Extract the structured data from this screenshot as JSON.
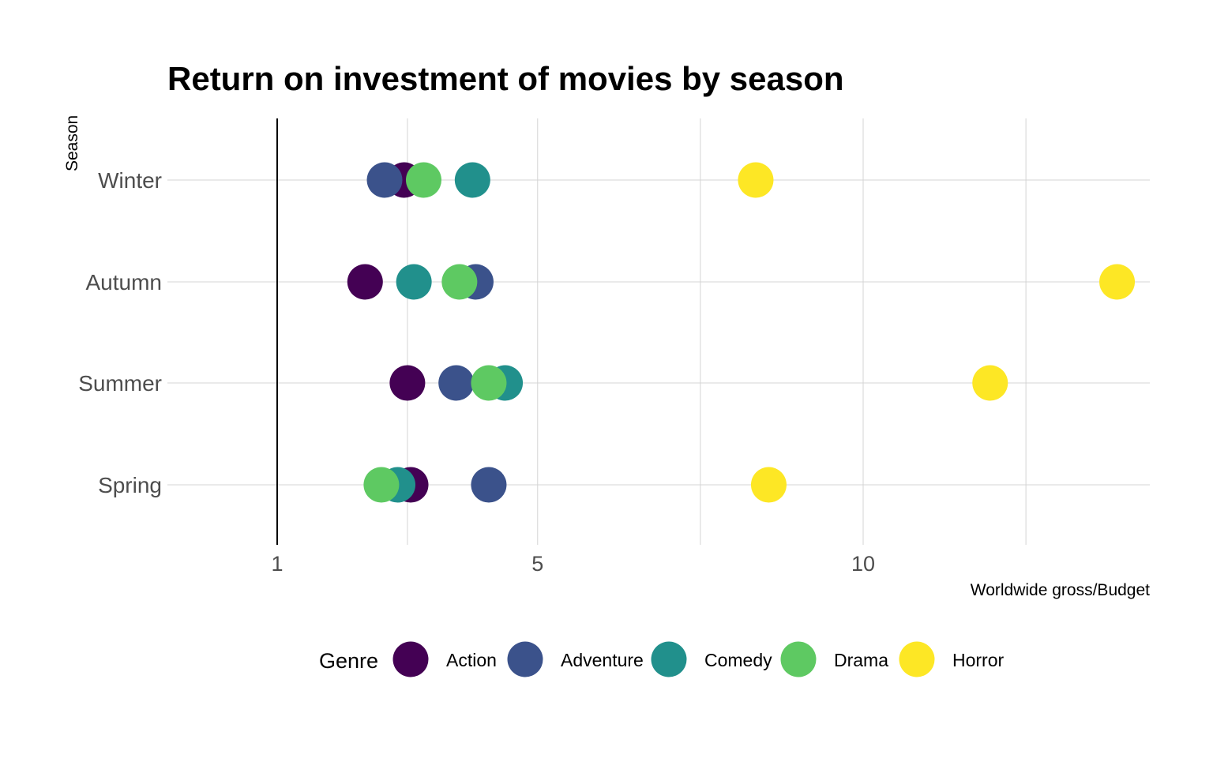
{
  "chart_data": {
    "type": "scatter",
    "title": "Return on investment of movies by season",
    "xlabel": "Worldwide gross/Budget",
    "ylabel": "Season",
    "x_ticks": [
      1,
      5,
      10
    ],
    "xlim": [
      1,
      14
    ],
    "grid": true,
    "legend_title": "Genre",
    "legend_position": "bottom",
    "categories": [
      "Spring",
      "Summer",
      "Autumn",
      "Winter"
    ],
    "series": [
      {
        "name": "Action",
        "color": "#440154",
        "values": [
          {
            "season": "Spring",
            "x": 3.05
          },
          {
            "season": "Summer",
            "x": 3.0
          },
          {
            "season": "Autumn",
            "x": 2.35
          },
          {
            "season": "Winter",
            "x": 2.95
          }
        ]
      },
      {
        "name": "Adventure",
        "color": "#3b528b",
        "values": [
          {
            "season": "Spring",
            "x": 4.25
          },
          {
            "season": "Summer",
            "x": 3.75
          },
          {
            "season": "Autumn",
            "x": 4.05
          },
          {
            "season": "Winter",
            "x": 2.65
          }
        ]
      },
      {
        "name": "Comedy",
        "color": "#21908c",
        "values": [
          {
            "season": "Spring",
            "x": 2.85
          },
          {
            "season": "Summer",
            "x": 4.5
          },
          {
            "season": "Autumn",
            "x": 3.1
          },
          {
            "season": "Winter",
            "x": 4.0
          }
        ]
      },
      {
        "name": "Drama",
        "color": "#5ec962",
        "values": [
          {
            "season": "Spring",
            "x": 2.6
          },
          {
            "season": "Summer",
            "x": 4.25
          },
          {
            "season": "Autumn",
            "x": 3.8
          },
          {
            "season": "Winter",
            "x": 3.25
          }
        ]
      },
      {
        "name": "Horror",
        "color": "#fde725",
        "values": [
          {
            "season": "Spring",
            "x": 8.55
          },
          {
            "season": "Summer",
            "x": 11.95
          },
          {
            "season": "Autumn",
            "x": 13.9
          },
          {
            "season": "Winter",
            "x": 8.35
          }
        ]
      }
    ]
  }
}
